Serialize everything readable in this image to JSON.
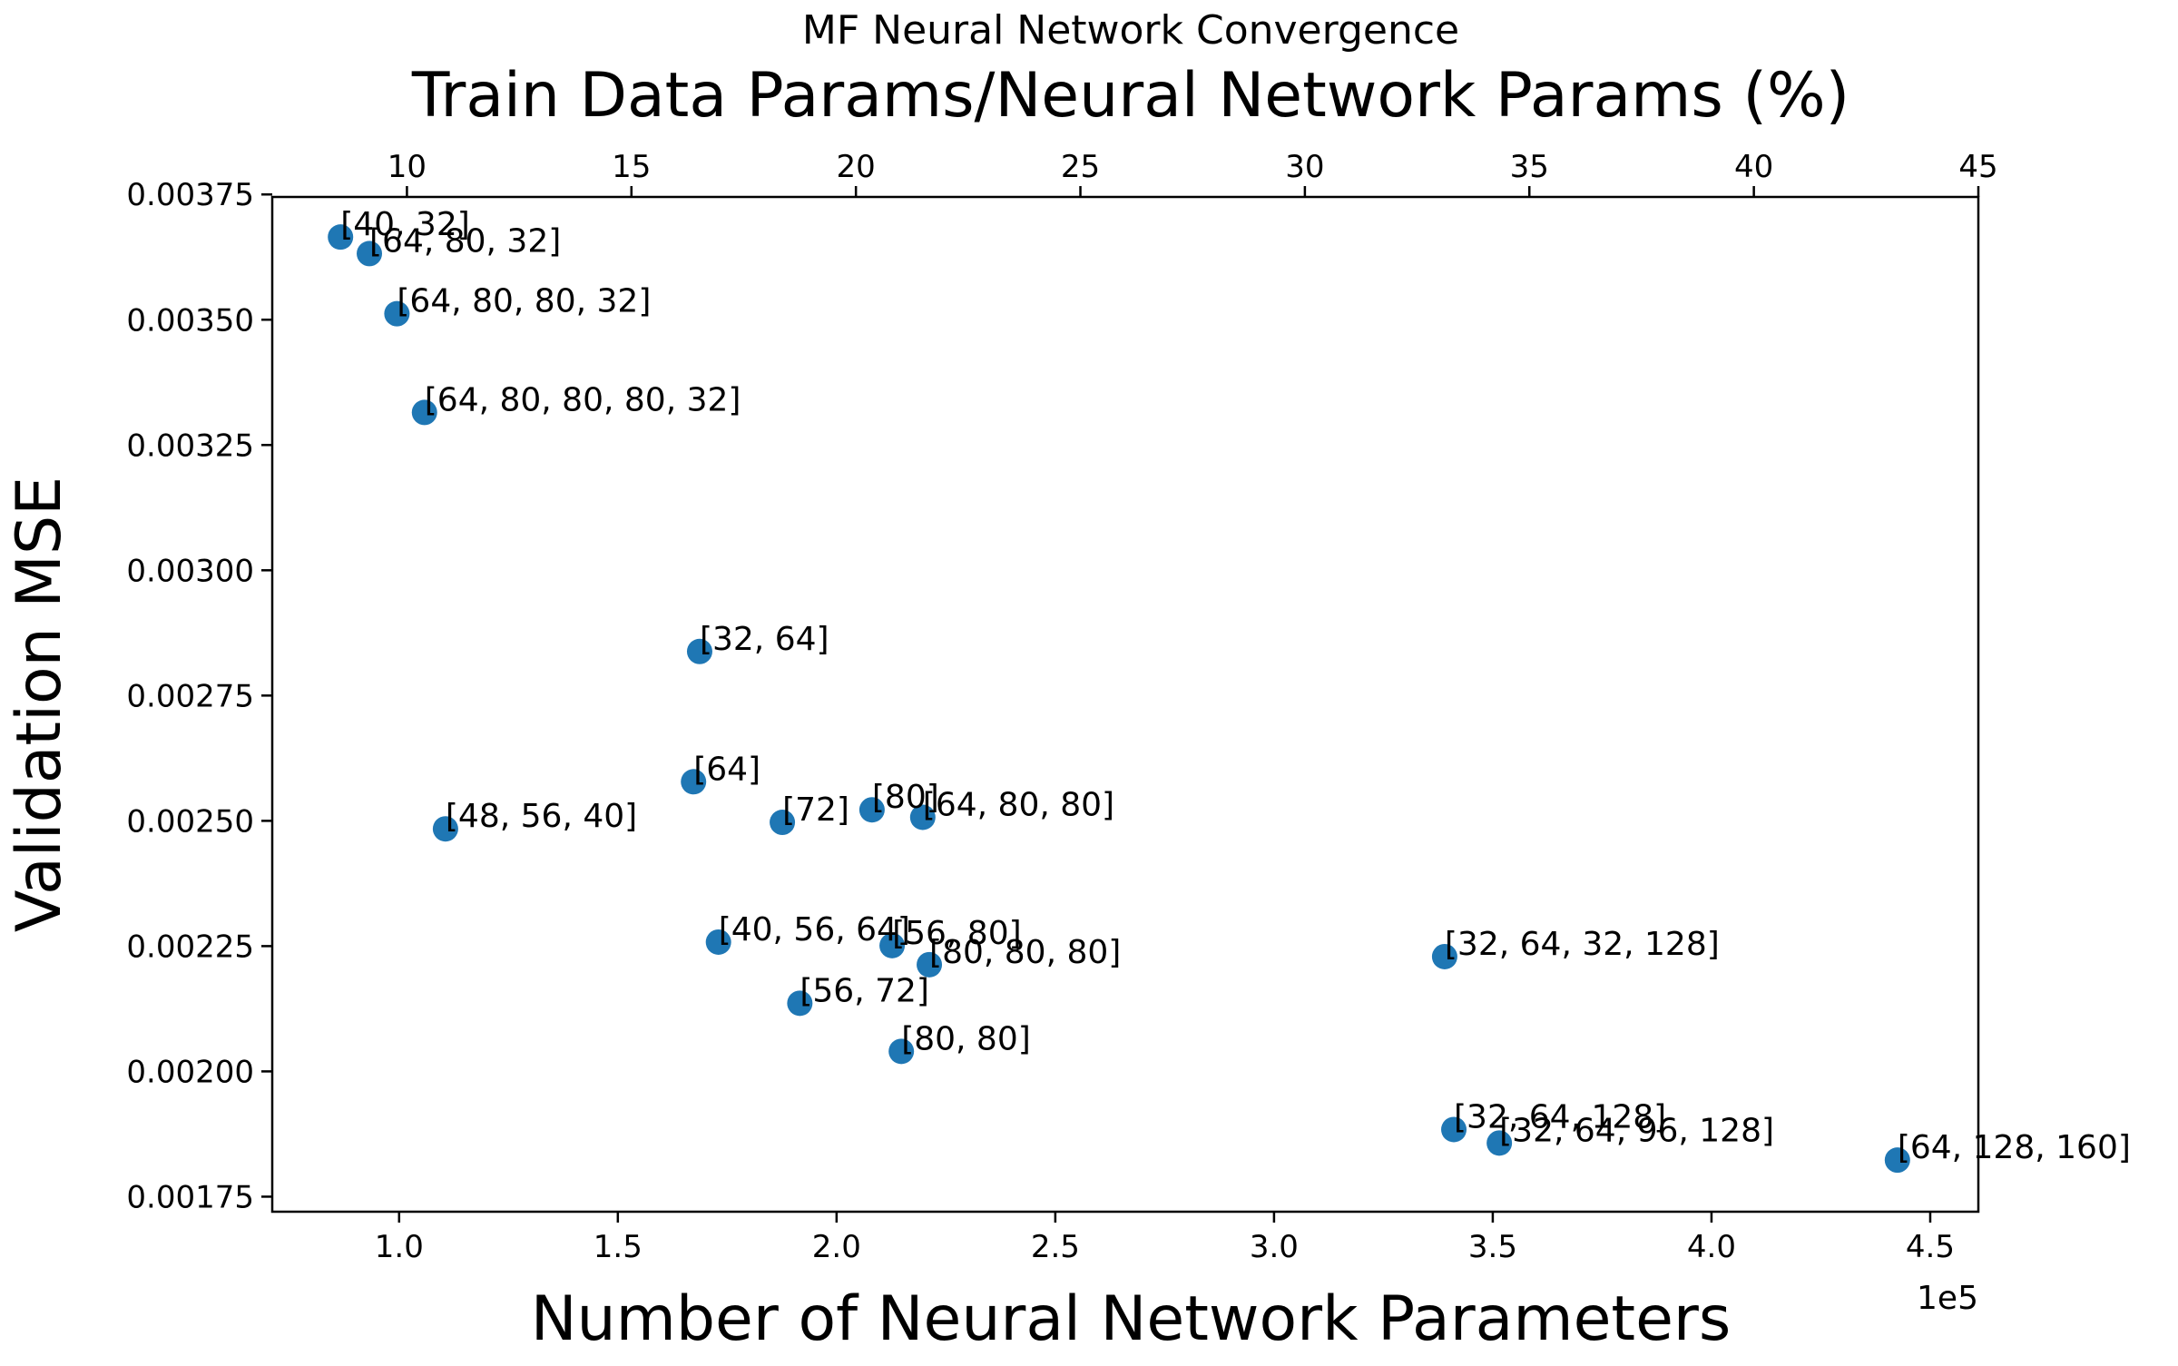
{
  "chart_data": {
    "type": "scatter",
    "title": "MF Neural Network Convergence",
    "xlabel": "Number of Neural Network Parameters",
    "ylabel": "Validation MSE",
    "top_xlabel": "Train Data Params/Neural Network Params (%)",
    "x_offset_label": "1e5",
    "xlim": [
      0.71,
      4.61
    ],
    "ylim": [
      0.00172,
      0.003745
    ],
    "top_xlim": [
      7.0,
      45.0
    ],
    "grid": false,
    "legend": "none",
    "marker_color": "#1f77b4",
    "x_ticks": [
      {
        "value": 1.0,
        "label": "1.0"
      },
      {
        "value": 1.5,
        "label": "1.5"
      },
      {
        "value": 2.0,
        "label": "2.0"
      },
      {
        "value": 2.5,
        "label": "2.5"
      },
      {
        "value": 3.0,
        "label": "3.0"
      },
      {
        "value": 3.5,
        "label": "3.5"
      },
      {
        "value": 4.0,
        "label": "4.0"
      },
      {
        "value": 4.5,
        "label": "4.5"
      }
    ],
    "top_x_ticks": [
      {
        "value": 10,
        "label": "10"
      },
      {
        "value": 15,
        "label": "15"
      },
      {
        "value": 20,
        "label": "20"
      },
      {
        "value": 25,
        "label": "25"
      },
      {
        "value": 30,
        "label": "30"
      },
      {
        "value": 35,
        "label": "35"
      },
      {
        "value": 40,
        "label": "40"
      },
      {
        "value": 45,
        "label": "45"
      }
    ],
    "y_ticks": [
      {
        "value": 0.00175,
        "label": "0.00175"
      },
      {
        "value": 0.002,
        "label": "0.00200"
      },
      {
        "value": 0.00225,
        "label": "0.00225"
      },
      {
        "value": 0.0025,
        "label": "0.00250"
      },
      {
        "value": 0.00275,
        "label": "0.00275"
      },
      {
        "value": 0.003,
        "label": "0.00300"
      },
      {
        "value": 0.00325,
        "label": "0.00325"
      },
      {
        "value": 0.0035,
        "label": "0.00350"
      },
      {
        "value": 0.00375,
        "label": "0.00375"
      }
    ],
    "points": [
      {
        "label": "[40, 32]",
        "x": 0.866,
        "y": 0.003665
      },
      {
        "label": "[64, 80, 32]",
        "x": 0.932,
        "y": 0.003632
      },
      {
        "label": "[64, 80, 80, 32]",
        "x": 0.995,
        "y": 0.003512
      },
      {
        "label": "[64, 80, 80, 80, 32]",
        "x": 1.058,
        "y": 0.003315
      },
      {
        "label": "[32, 64]",
        "x": 1.687,
        "y": 0.002838
      },
      {
        "label": "[64]",
        "x": 1.673,
        "y": 0.002578
      },
      {
        "label": "[48, 56, 40]",
        "x": 1.106,
        "y": 0.002484
      },
      {
        "label": "[72]",
        "x": 1.876,
        "y": 0.002497
      },
      {
        "label": "[80]",
        "x": 2.081,
        "y": 0.002522
      },
      {
        "label": "[64, 80, 80]",
        "x": 2.197,
        "y": 0.002507
      },
      {
        "label": "[40, 56, 64]",
        "x": 1.73,
        "y": 0.002258
      },
      {
        "label": "[56, 80]",
        "x": 2.127,
        "y": 0.002251
      },
      {
        "label": "[80, 80, 80]",
        "x": 2.212,
        "y": 0.002213
      },
      {
        "label": "[56, 72]",
        "x": 1.916,
        "y": 0.002136
      },
      {
        "label": "[80, 80]",
        "x": 2.148,
        "y": 0.00204
      },
      {
        "label": "[32, 64, 32, 128]",
        "x": 3.39,
        "y": 0.002229
      },
      {
        "label": "[32, 64, 128]",
        "x": 3.411,
        "y": 0.001884
      },
      {
        "label": "[32, 64, 96, 128]",
        "x": 3.515,
        "y": 0.001857
      },
      {
        "label": "[64, 128, 160]",
        "x": 4.425,
        "y": 0.001823
      }
    ]
  }
}
